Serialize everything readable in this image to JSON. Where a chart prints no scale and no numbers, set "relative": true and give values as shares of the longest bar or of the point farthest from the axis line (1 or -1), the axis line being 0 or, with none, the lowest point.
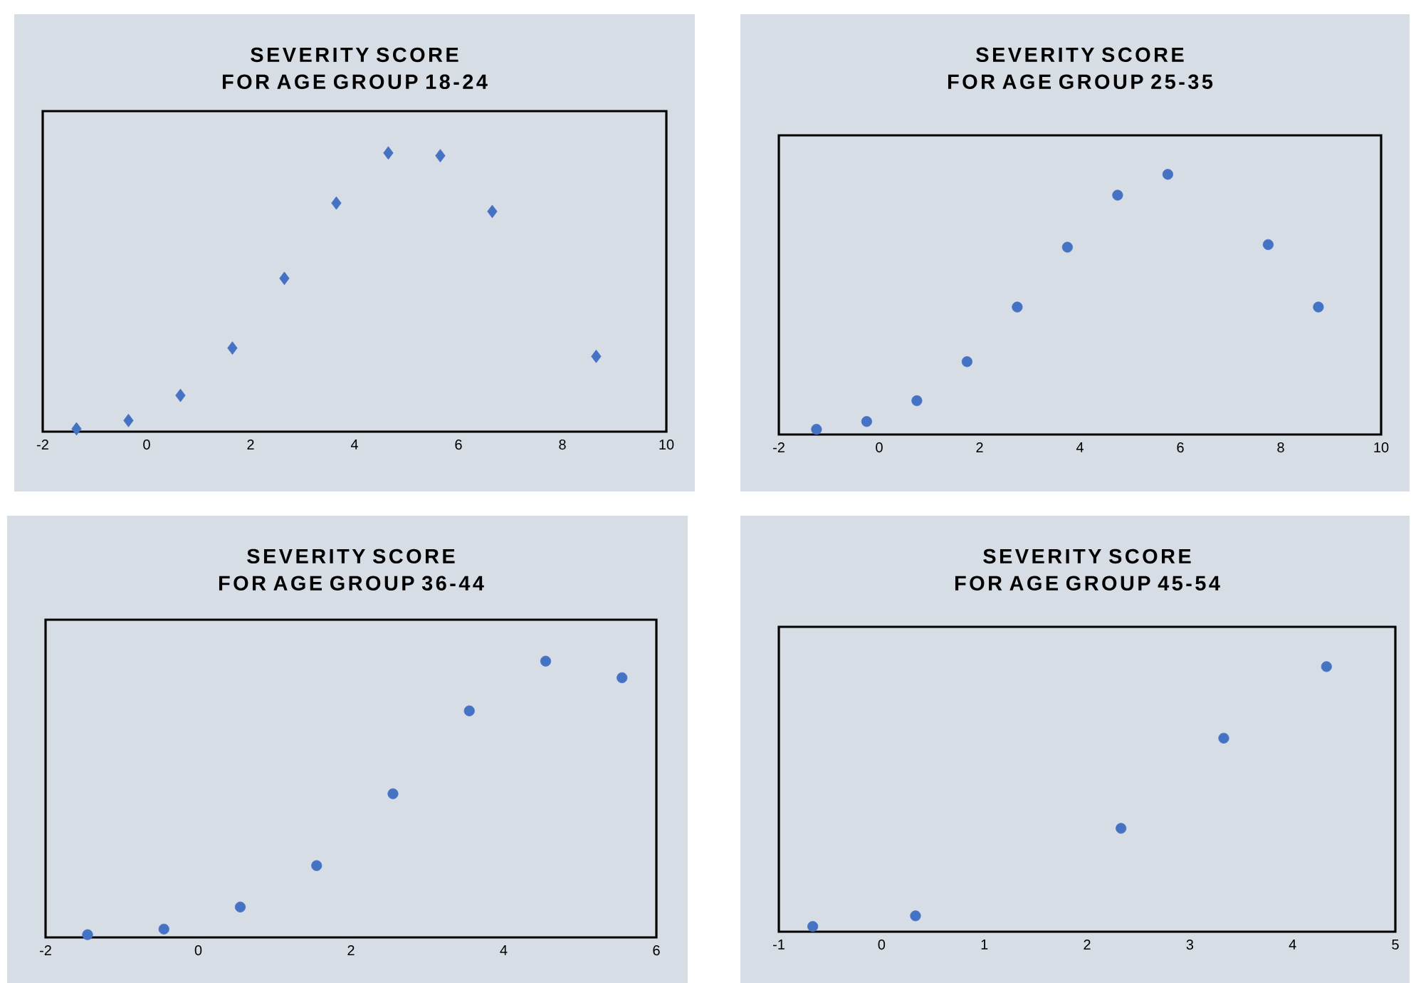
{
  "chart_data": [
    {
      "type": "scatter",
      "title": "SEVERITY SCORE FOR AGE GROUP 18-24",
      "marker": "diamond",
      "color": "#4472c4",
      "relative": true,
      "tick_labels": "x",
      "xlim": [
        -2,
        10
      ],
      "xticks": [
        -2,
        0,
        2,
        4,
        6,
        8,
        10
      ],
      "x": [
        -1.35,
        -0.35,
        0.65,
        1.65,
        2.65,
        3.65,
        4.65,
        5.65,
        6.65,
        8.65
      ],
      "values": [
        0.01,
        0.04,
        0.13,
        0.3,
        0.55,
        0.82,
        1,
        0.99,
        0.79,
        0.27
      ]
    },
    {
      "type": "scatter",
      "title": "SEVERITY SCORE FOR AGE GROUP 25-35",
      "marker": "circle",
      "color": "#4472c4",
      "relative": true,
      "tick_labels": "x",
      "xlim": [
        -2,
        10
      ],
      "xticks": [
        -2,
        0,
        2,
        4,
        6,
        8,
        10
      ],
      "x": [
        -1.25,
        -0.25,
        0.75,
        1.75,
        2.75,
        3.75,
        4.75,
        5.75,
        7.75,
        8.75
      ],
      "values": [
        0.02,
        0.05,
        0.13,
        0.28,
        0.49,
        0.72,
        0.92,
        1,
        0.73,
        0.49
      ]
    },
    {
      "type": "scatter",
      "title": "SEVERITY SCORE FOR AGE GROUP 36-44",
      "marker": "circle",
      "color": "#4472c4",
      "relative": true,
      "tick_labels": "x",
      "xlim": [
        -2,
        6
      ],
      "xticks": [
        -2,
        0,
        2,
        4,
        6
      ],
      "x": [
        -1.45,
        -0.45,
        0.55,
        1.55,
        2.55,
        3.55,
        4.55,
        5.55
      ],
      "values": [
        0.01,
        0.03,
        0.11,
        0.26,
        0.52,
        0.82,
        1,
        0.94
      ]
    },
    {
      "type": "scatter",
      "title": "SEVERITY SCORE FOR AGE GROUP 45-54",
      "marker": "circle",
      "color": "#4472c4",
      "relative": true,
      "tick_labels": "x",
      "xlim": [
        -1,
        5
      ],
      "xticks": [
        -1,
        0,
        1,
        2,
        3,
        4,
        5
      ],
      "x": [
        -0.67,
        0.33,
        2.33,
        3.33,
        4.33
      ],
      "values": [
        0.02,
        0.06,
        0.39,
        0.73,
        1
      ]
    }
  ]
}
